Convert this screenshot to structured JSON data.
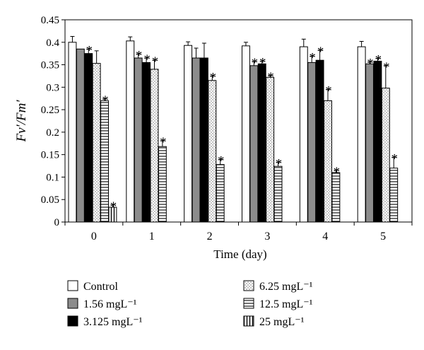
{
  "chart_data": {
    "type": "bar",
    "ylabel": "Fv′/Fm′",
    "xlabel": "Time (day)",
    "ylim": [
      0,
      0.45
    ],
    "yticks": [
      "0",
      "0.05",
      "0.1",
      "0.15",
      "0.2",
      "0.25",
      "0.3",
      "0.35",
      "0.4",
      "0.45"
    ],
    "categories": [
      "0",
      "1",
      "2",
      "3",
      "4",
      "5"
    ],
    "legend_position": "bottom",
    "series": [
      {
        "name": "Control",
        "pattern": "white",
        "values": [
          0.4,
          0.403,
          0.393,
          0.392,
          0.39,
          0.39
        ],
        "errors": [
          0.013,
          0.009,
          0.008,
          0.008,
          0.017,
          0.012
        ],
        "significant": [
          false,
          false,
          false,
          false,
          false,
          false
        ]
      },
      {
        "name": "1.56 mgL⁻¹",
        "pattern": "gray",
        "values": [
          0.385,
          0.365,
          0.365,
          0.348,
          0.355,
          0.352
        ],
        "errors": [
          0.0,
          0.009,
          0.022,
          0.009,
          0.014,
          0.004
        ],
        "significant": [
          false,
          true,
          false,
          true,
          true,
          true
        ]
      },
      {
        "name": "3.125 mgL⁻¹",
        "pattern": "black",
        "values": [
          0.375,
          0.355,
          0.365,
          0.352,
          0.36,
          0.358
        ],
        "errors": [
          0.01,
          0.01,
          0.033,
          0.006,
          0.022,
          0.006
        ],
        "significant": [
          true,
          true,
          false,
          true,
          true,
          true
        ]
      },
      {
        "name": "6.25 mgL⁻¹",
        "pattern": "dots",
        "values": [
          0.353,
          0.34,
          0.315,
          0.322,
          0.27,
          0.298
        ],
        "errors": [
          0.028,
          0.02,
          0.01,
          0.004,
          0.025,
          0.05
        ],
        "significant": [
          false,
          true,
          true,
          true,
          true,
          true
        ]
      },
      {
        "name": "12.5 mgL⁻¹",
        "pattern": "hlines",
        "values": [
          0.27,
          0.168,
          0.128,
          0.124,
          0.11,
          0.12
        ],
        "errors": [
          0.004,
          0.013,
          0.011,
          0.009,
          0.005,
          0.024
        ],
        "significant": [
          true,
          true,
          true,
          true,
          true,
          true
        ]
      },
      {
        "name": "25 mgL⁻¹",
        "pattern": "vlines",
        "values": [
          0.033,
          null,
          null,
          null,
          null,
          null
        ],
        "errors": [
          0.005,
          null,
          null,
          null,
          null,
          null
        ],
        "significant": [
          true,
          false,
          false,
          false,
          false,
          false
        ]
      }
    ],
    "significance_marker": "*"
  }
}
